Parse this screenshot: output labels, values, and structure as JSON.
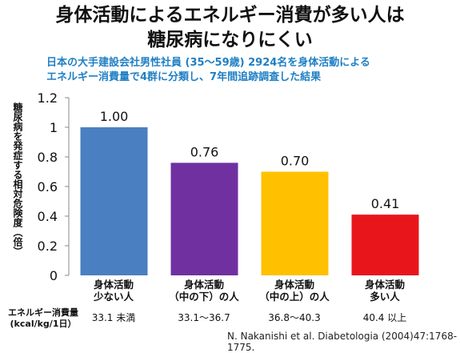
{
  "header": {
    "title_line1": "身体活動によるエネルギー消費が多い人は",
    "title_line2": "糖尿病になりにくい",
    "subtitle_line1": "日本の大手建設会社男性社員 (35〜59歳) 2924名を身体活動による",
    "subtitle_line2": "エネルギー消費量で4群に分類し、7年間追跡調査した結果"
  },
  "chart_data": {
    "type": "bar",
    "ylabel": "糖尿病を発症する相対危険度（倍）",
    "ylim": [
      0,
      1.2
    ],
    "yticks": [
      "0",
      "0.2",
      "0.4",
      "0.6",
      "0.8",
      "1",
      "1.2"
    ],
    "categories": [
      [
        "身体活動",
        "少ない人"
      ],
      [
        "身体活動",
        "（中の下）の人"
      ],
      [
        "身体活動",
        "（中の上）の人"
      ],
      [
        "身体活動",
        "多い人"
      ]
    ],
    "values": [
      1.0,
      0.76,
      0.7,
      0.41
    ],
    "value_labels": [
      "1.00",
      "0.76",
      "0.70",
      "0.41"
    ],
    "colors": [
      "#4a7fc1",
      "#7030a0",
      "#ffc000",
      "#e8161b"
    ],
    "grid": false
  },
  "energy": {
    "label_line1": "エネルギー消費量",
    "label_line2": "(kcal/kg/1日）",
    "values": [
      "33.1 未満",
      "33.1〜36.7",
      "36.8〜40.3",
      "40.4 以上"
    ]
  },
  "citation": "N. Nakanishi et al. Diabetologia (2004)47:1768-1775."
}
